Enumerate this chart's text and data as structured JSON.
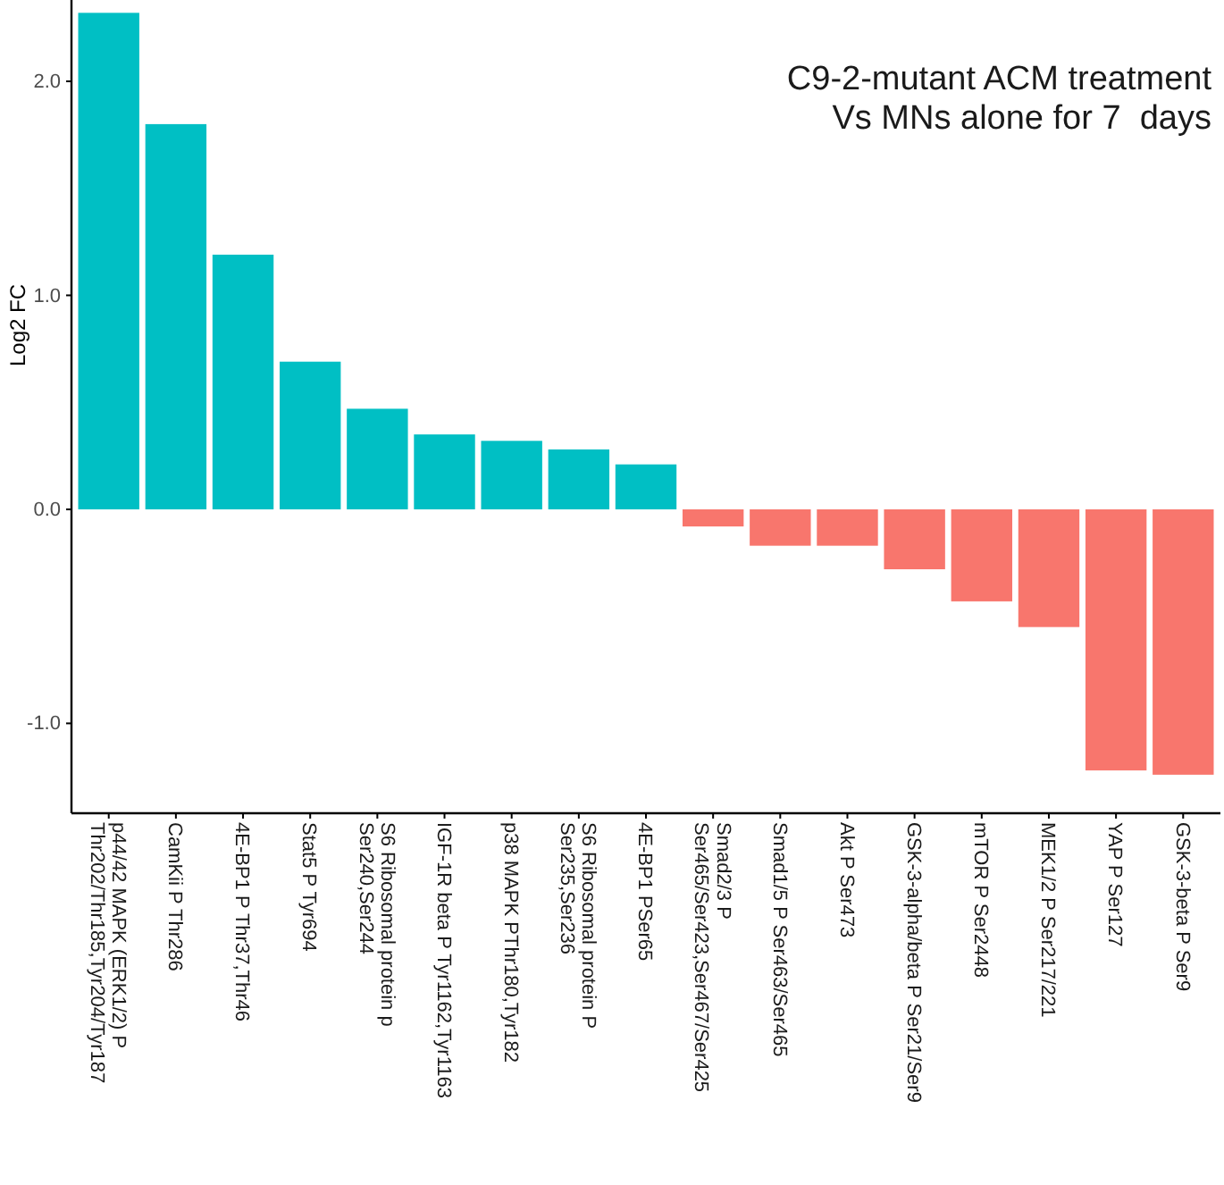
{
  "chart_data": {
    "type": "bar",
    "title": "C9-2-mutant ACM treatment\nVs MNs alone for 7  days",
    "ylabel": "Log2 FC",
    "categories": [
      "p44/42 MAPK (ERK1/2) P\nThr202/Thr185,Tyr204/Tyr187",
      "CamKii P Thr286",
      "4E-BP1 P Thr37,Thr46",
      "Stat5 P Tyr694",
      "S6 Ribosomal protein p\nSer240,Ser244",
      "IGF-1R beta P Tyr1162,Tyr1163",
      "p38 MAPK PThr180,Tyr182",
      "S6 Ribosomal protein P\nSer235,Ser236",
      "4E-BP1 PSer65",
      "Smad2/3 P\nSer465/Ser423,Ser467/Ser425",
      "Smad1/5 P Ser463/Ser465",
      "Akt P Ser473",
      "GSK-3-alpha/beta P Ser21/Ser9",
      "mTOR P Ser2448",
      "MEK1/2 P Ser217/221",
      "YAP P Ser127",
      "GSK-3-beta P Ser9"
    ],
    "values": [
      2.32,
      1.8,
      1.19,
      0.69,
      0.47,
      0.35,
      0.32,
      0.28,
      0.21,
      -0.08,
      -0.17,
      -0.17,
      -0.28,
      -0.43,
      -0.55,
      -1.22,
      -1.24
    ],
    "colors": [
      "#00bfc4",
      "#00bfc4",
      "#00bfc4",
      "#00bfc4",
      "#00bfc4",
      "#00bfc4",
      "#00bfc4",
      "#00bfc4",
      "#00bfc4",
      "#f8766d",
      "#f8766d",
      "#f8766d",
      "#f8766d",
      "#f8766d",
      "#f8766d",
      "#f8766d",
      "#f8766d"
    ],
    "ylim": [
      -1.42,
      2.38
    ],
    "yticks": [
      {
        "value": -1,
        "label": "-1.0"
      },
      {
        "value": 0,
        "label": "0.0"
      },
      {
        "value": 1,
        "label": "1.0"
      },
      {
        "value": 2,
        "label": "2.0"
      }
    ],
    "grid": false
  }
}
